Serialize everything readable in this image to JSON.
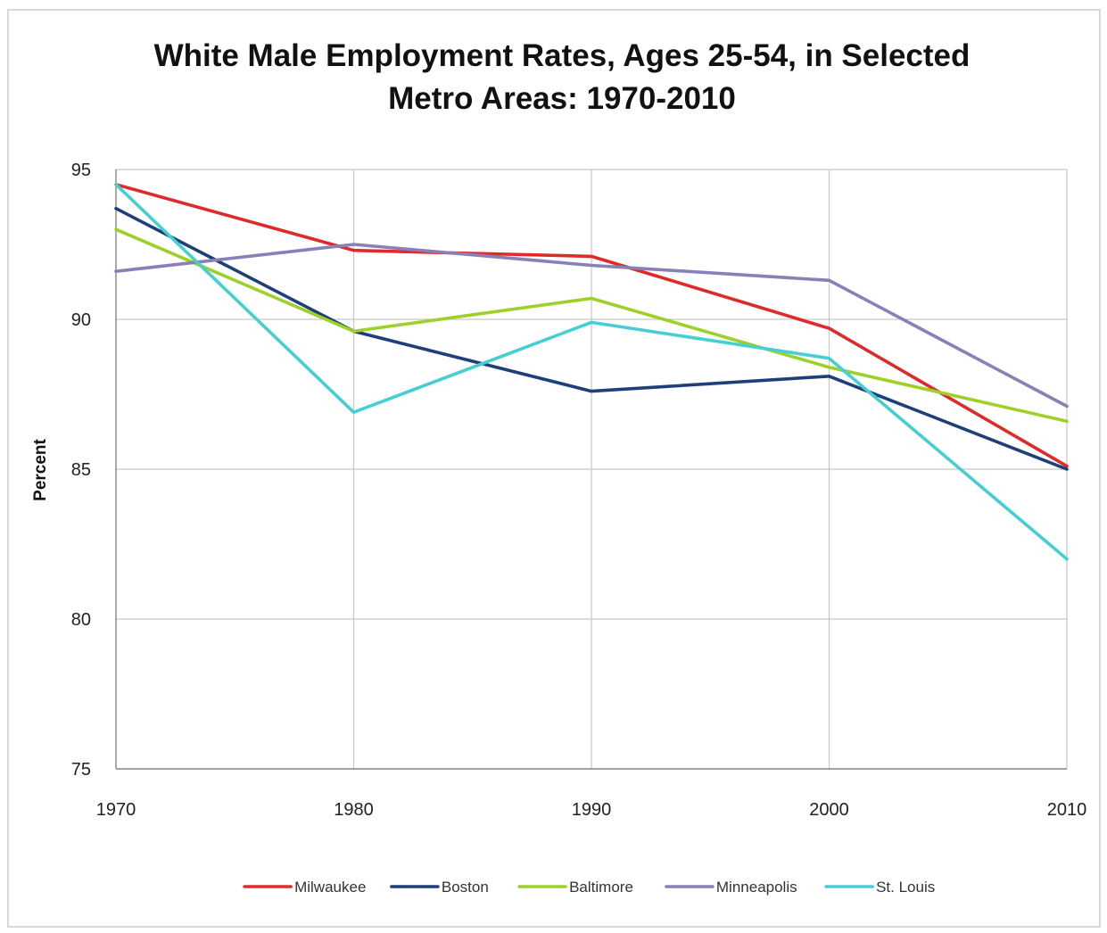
{
  "chart_data": {
    "type": "line",
    "title_lines": [
      "White Male Employment Rates, Ages 25-54, in Selected",
      "Metro Areas: 1970-2010"
    ],
    "xlabel": "",
    "ylabel": "Percent",
    "x": [
      "1970",
      "1980",
      "1990",
      "2000",
      "2010"
    ],
    "ylim": [
      75,
      95
    ],
    "y_ticks": [
      75,
      80,
      85,
      90,
      95
    ],
    "grid": true,
    "legend_position": "bottom",
    "series": [
      {
        "name": "Milwaukee",
        "color": "#e02a2a",
        "values": [
          94.5,
          92.3,
          92.1,
          89.7,
          85.1
        ]
      },
      {
        "name": "Boston",
        "color": "#1f3f7a",
        "values": [
          93.7,
          89.6,
          87.6,
          88.1,
          85.0
        ]
      },
      {
        "name": "Baltimore",
        "color": "#9dd12a",
        "values": [
          93.0,
          89.6,
          90.7,
          88.4,
          86.6
        ]
      },
      {
        "name": "Minneapolis",
        "color": "#8a7fb8",
        "values": [
          91.6,
          92.5,
          91.8,
          91.3,
          87.1
        ]
      },
      {
        "name": "St. Louis",
        "color": "#46cfd3",
        "values": [
          94.5,
          86.9,
          89.9,
          88.7,
          82.0
        ]
      }
    ]
  }
}
